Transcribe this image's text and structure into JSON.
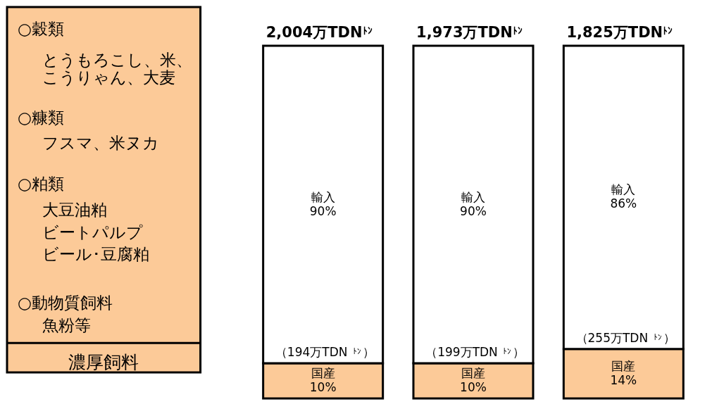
{
  "chart_data": [
    {
      "type": "other",
      "color": "#fcca98",
      "annotations": [
        "○穀類",
        "とうもろこし、米、",
        "こうりゃん、大麦",
        "○糠類",
        "フスマ、米ヌカ",
        "○粕類",
        "大豆油粕",
        "ビートパルプ",
        "ビール･豆腐粕",
        "○動物質飼料",
        "魚粉等",
        "濃厚飼料"
      ]
    },
    {
      "type": "bar",
      "stacked": true,
      "categories": [
        null,
        null,
        null
      ],
      "series": [
        {
          "name": "国産",
          "color": "#fcca98",
          "values": [
            10,
            10,
            14
          ],
          "value_labels": [
            "10%",
            "10%",
            "14%"
          ]
        },
        {
          "name": "輸入",
          "color": "#ffffff",
          "values": [
            90,
            90,
            86
          ],
          "value_labels": [
            "90%",
            "90%",
            "86%"
          ]
        }
      ],
      "annotations": [
        "2,004万TDN$^{ﾄﾝ}$",
        "1,973万TDN$^{ﾄﾝ}$",
        "1,825万TDN$^{ﾄﾝ}$",
        "（194万TDN $^{ﾄﾝ}$）",
        "（199万TDN $^{ﾄﾝ}$）",
        "（255万TDN $^{ﾄﾝ}$）"
      ]
    }
  ]
}
